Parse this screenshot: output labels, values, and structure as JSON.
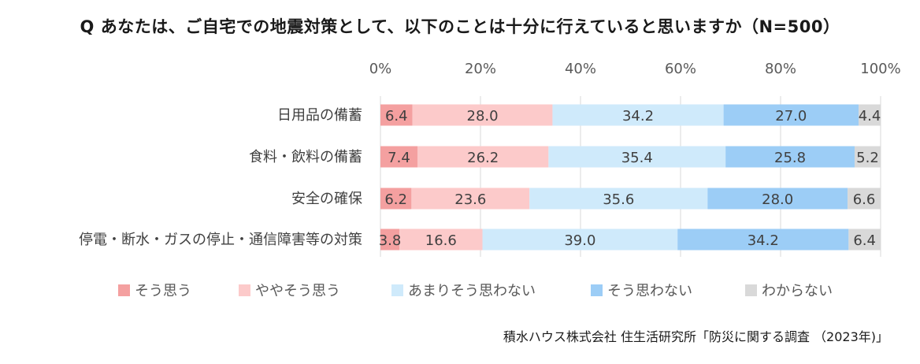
{
  "title": "Q あなたは、ご自宅での地震対策として、以下のことは十分に行えていると思いますか（N=500）",
  "source": "積水ハウス株式会社 住生活研究所「防災に関する調査 （2023年)」",
  "chart_data": {
    "type": "bar",
    "orientation": "horizontal",
    "stacked": true,
    "percent": true,
    "title": "Q あなたは、ご自宅での地震対策として、以下のことは十分に行えていると思いますか（N=500）",
    "xlim": [
      0,
      100
    ],
    "xticks": [
      "0%",
      "20%",
      "40%",
      "60%",
      "80%",
      "100%"
    ],
    "grid": true,
    "legend_position": "bottom",
    "categories": [
      "日用品の備蓄",
      "食料・飲料の備蓄",
      "安全の確保",
      "停電・断水・ガスの停止・通信障害等の対策"
    ],
    "series": [
      {
        "name": "そう思う",
        "color": "#f4a0a0",
        "values": [
          6.4,
          7.4,
          6.2,
          3.8
        ]
      },
      {
        "name": "ややそう思う",
        "color": "#fccaca",
        "values": [
          28.0,
          26.2,
          23.6,
          16.6
        ]
      },
      {
        "name": "あまりそう思わない",
        "color": "#cfeafb",
        "values": [
          34.2,
          35.4,
          35.6,
          39.0
        ]
      },
      {
        "name": "そう思わない",
        "color": "#9ccdf6",
        "values": [
          27.0,
          25.8,
          28.0,
          34.2
        ]
      },
      {
        "name": "わからない",
        "color": "#d9d9d9",
        "values": [
          4.4,
          5.2,
          6.6,
          6.4
        ]
      }
    ]
  }
}
